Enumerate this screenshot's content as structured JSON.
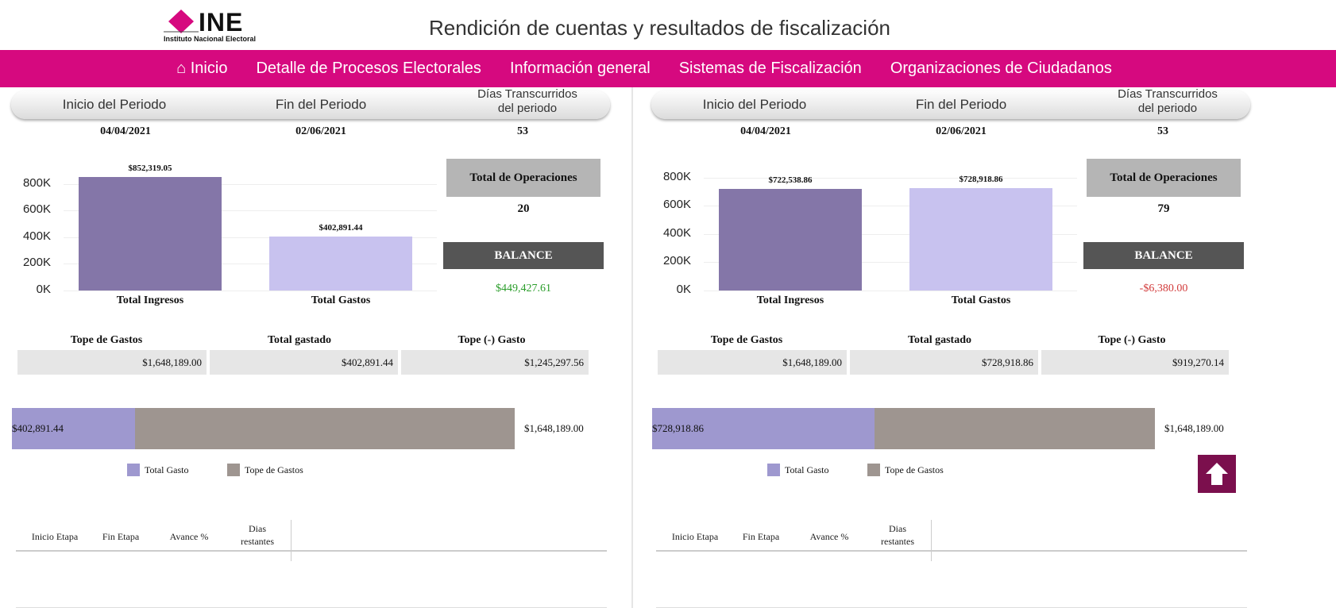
{
  "header": {
    "logo_text": "INE",
    "logo_subtitle": "Instituto Nacional Electoral",
    "title": "Rendición de cuentas y resultados de fiscalización"
  },
  "nav": [
    {
      "label": "Inicio",
      "icon": "home-icon"
    },
    {
      "label": "Detalle de Procesos Electorales"
    },
    {
      "label": "Información general"
    },
    {
      "label": "Sistemas de Fiscalización"
    },
    {
      "label": "Organizaciones de Ciudadanos"
    }
  ],
  "labels": {
    "inicio_periodo": "Inicio del Periodo",
    "fin_periodo": "Fin del Periodo",
    "dias_1": "Días Transcurridos",
    "dias_2": "del periodo",
    "total_ops": "Total de Operaciones",
    "balance": "BALANCE",
    "tope": "Tope de Gastos",
    "gastado": "Total gastado",
    "tope_menos": "Tope (-) Gasto",
    "legend_gasto": "Total Gasto",
    "legend_tope": "Tope de Gastos",
    "cat_ingresos": "Total Ingresos",
    "cat_gastos": "Total Gastos",
    "th": [
      "Inicio Etapa",
      "Fin Etapa",
      "Avance %",
      "Dias",
      "restantes"
    ],
    "yticks": [
      "0K",
      "200K",
      "400K",
      "600K",
      "800K"
    ]
  },
  "colors": {
    "ingresos": "#8476a8",
    "gastos": "#c8c2ef",
    "gasto_bar": "#9e98cf",
    "tope_bar": "#9e9590",
    "positive": "#2a9d2a",
    "negative": "#d23b3b",
    "nav": "#d6097f"
  },
  "panels": [
    {
      "inicio": "04/04/2021",
      "fin": "02/06/2021",
      "dias": "53",
      "ingresos": 852319.05,
      "gastos": 402891.44,
      "ingresos_label": "$852,319.05",
      "gastos_label": "$402,891.44",
      "ymax": 900000,
      "total_ops": "20",
      "balance": "$449,427.61",
      "balance_sign": "positive",
      "tope_gastos": "$1,648,189.00",
      "total_gastado": "$402,891.44",
      "tope_menos_gasto": "$1,245,297.56",
      "gasto_value": 402891.44,
      "tope_value": 1648189,
      "gasto_bar_label": "$402,891.44",
      "tope_bar_label": "$1,648,189.00"
    },
    {
      "inicio": "04/04/2021",
      "fin": "02/06/2021",
      "dias": "53",
      "ingresos": 722538.86,
      "gastos": 728918.86,
      "ingresos_label": "$722,538.86",
      "gastos_label": "$728,918.86",
      "ymax": 850000,
      "total_ops": "79",
      "balance": "-$6,380.00",
      "balance_sign": "negative",
      "tope_gastos": "$1,648,189.00",
      "total_gastado": "$728,918.86",
      "tope_menos_gasto": "$919,270.14",
      "gasto_value": 728918.86,
      "tope_value": 1648189,
      "gasto_bar_label": "$728,918.86",
      "tope_bar_label": "$1,648,189.00"
    }
  ]
}
